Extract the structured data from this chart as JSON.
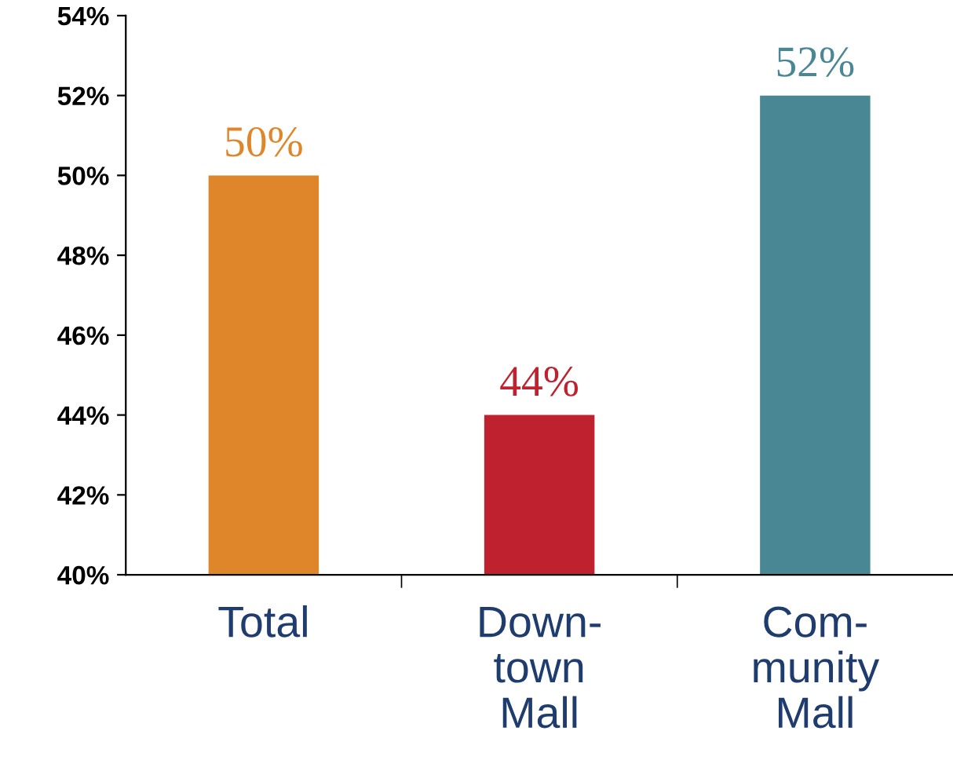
{
  "chart_data": {
    "type": "bar",
    "categories": [
      "Total",
      "Down-\ntown\nMall",
      "Com-\nmunity\nMall"
    ],
    "values": [
      50,
      44,
      52
    ],
    "colors": [
      "#e0862a",
      "#c0212e",
      "#4a8795"
    ],
    "value_labels": [
      "50%",
      "44%",
      "52%"
    ],
    "ylim": [
      40,
      54
    ],
    "yticks": [
      {
        "value": 40,
        "label": "40%"
      },
      {
        "value": 42,
        "label": "42%"
      },
      {
        "value": 44,
        "label": "44%"
      },
      {
        "value": 46,
        "label": "46%"
      },
      {
        "value": 48,
        "label": "48%"
      },
      {
        "value": 50,
        "label": "50%"
      },
      {
        "value": 52,
        "label": "52%"
      },
      {
        "value": 54,
        "label": "54%"
      }
    ],
    "grid": false,
    "legend": false
  }
}
